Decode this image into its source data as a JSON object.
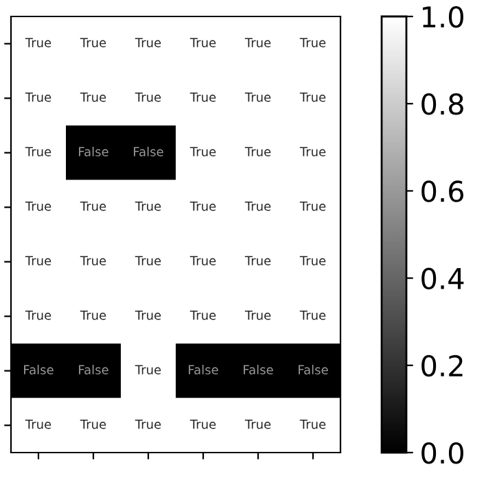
{
  "chart_data": {
    "type": "heatmap",
    "categories": [
      null,
      null,
      null,
      null,
      null,
      null
    ],
    "y_categories": [
      null,
      null,
      null,
      null,
      null,
      null,
      null,
      null
    ],
    "cells": [
      [
        1,
        1,
        1,
        1,
        1,
        1
      ],
      [
        1,
        1,
        1,
        1,
        1,
        1
      ],
      [
        1,
        0,
        0,
        1,
        1,
        1
      ],
      [
        1,
        1,
        1,
        1,
        1,
        1
      ],
      [
        1,
        1,
        1,
        1,
        1,
        1
      ],
      [
        1,
        1,
        1,
        1,
        1,
        1
      ],
      [
        0,
        0,
        1,
        0,
        0,
        0
      ],
      [
        1,
        1,
        1,
        1,
        1,
        1
      ]
    ],
    "cell_labels": [
      [
        "True",
        "True",
        "True",
        "True",
        "True",
        "True"
      ],
      [
        "True",
        "True",
        "True",
        "True",
        "True",
        "True"
      ],
      [
        "True",
        "False",
        "False",
        "True",
        "True",
        "True"
      ],
      [
        "True",
        "True",
        "True",
        "True",
        "True",
        "True"
      ],
      [
        "True",
        "True",
        "True",
        "True",
        "True",
        "True"
      ],
      [
        "True",
        "True",
        "True",
        "True",
        "True",
        "True"
      ],
      [
        "False",
        "False",
        "True",
        "False",
        "False",
        "False"
      ],
      [
        "True",
        "True",
        "True",
        "True",
        "True",
        "True"
      ]
    ],
    "clim": [
      0,
      1
    ],
    "cticks": [
      {
        "value": 0,
        "label": "0.0"
      },
      {
        "value": 0.2,
        "label": "0.2"
      },
      {
        "value": 0.4,
        "label": "0.4"
      },
      {
        "value": 0.6,
        "label": "0.6"
      },
      {
        "value": 0.8,
        "label": "0.8"
      },
      {
        "value": 1,
        "label": "1.0"
      }
    ]
  }
}
